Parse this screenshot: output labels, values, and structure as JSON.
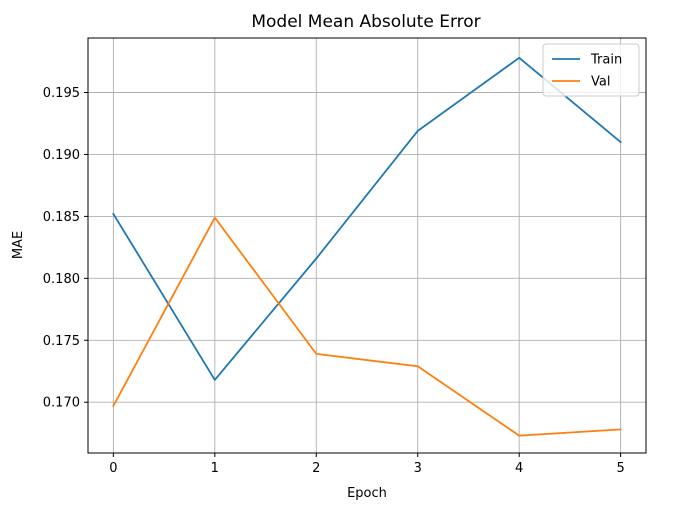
{
  "chart_data": {
    "type": "line",
    "title": "Model Mean Absolute Error",
    "xlabel": "Epoch",
    "ylabel": "MAE",
    "x": [
      0,
      1,
      2,
      3,
      4,
      5
    ],
    "xticks": [
      "0",
      "1",
      "2",
      "3",
      "4",
      "5"
    ],
    "yticks": [
      "0.170",
      "0.175",
      "0.180",
      "0.185",
      "0.190",
      "0.195"
    ],
    "xlim": [
      -0.25,
      5.25
    ],
    "ylim": [
      0.1659,
      0.1994
    ],
    "grid": true,
    "legend_position": "top-right",
    "series": [
      {
        "name": "Train",
        "color": "#1f77b4",
        "values": [
          0.1852,
          0.1718,
          0.1816,
          0.1919,
          0.1978,
          0.191
        ]
      },
      {
        "name": "Val",
        "color": "#ff7f0e",
        "values": [
          0.1697,
          0.1849,
          0.1739,
          0.1729,
          0.1673,
          0.1678
        ]
      }
    ]
  }
}
